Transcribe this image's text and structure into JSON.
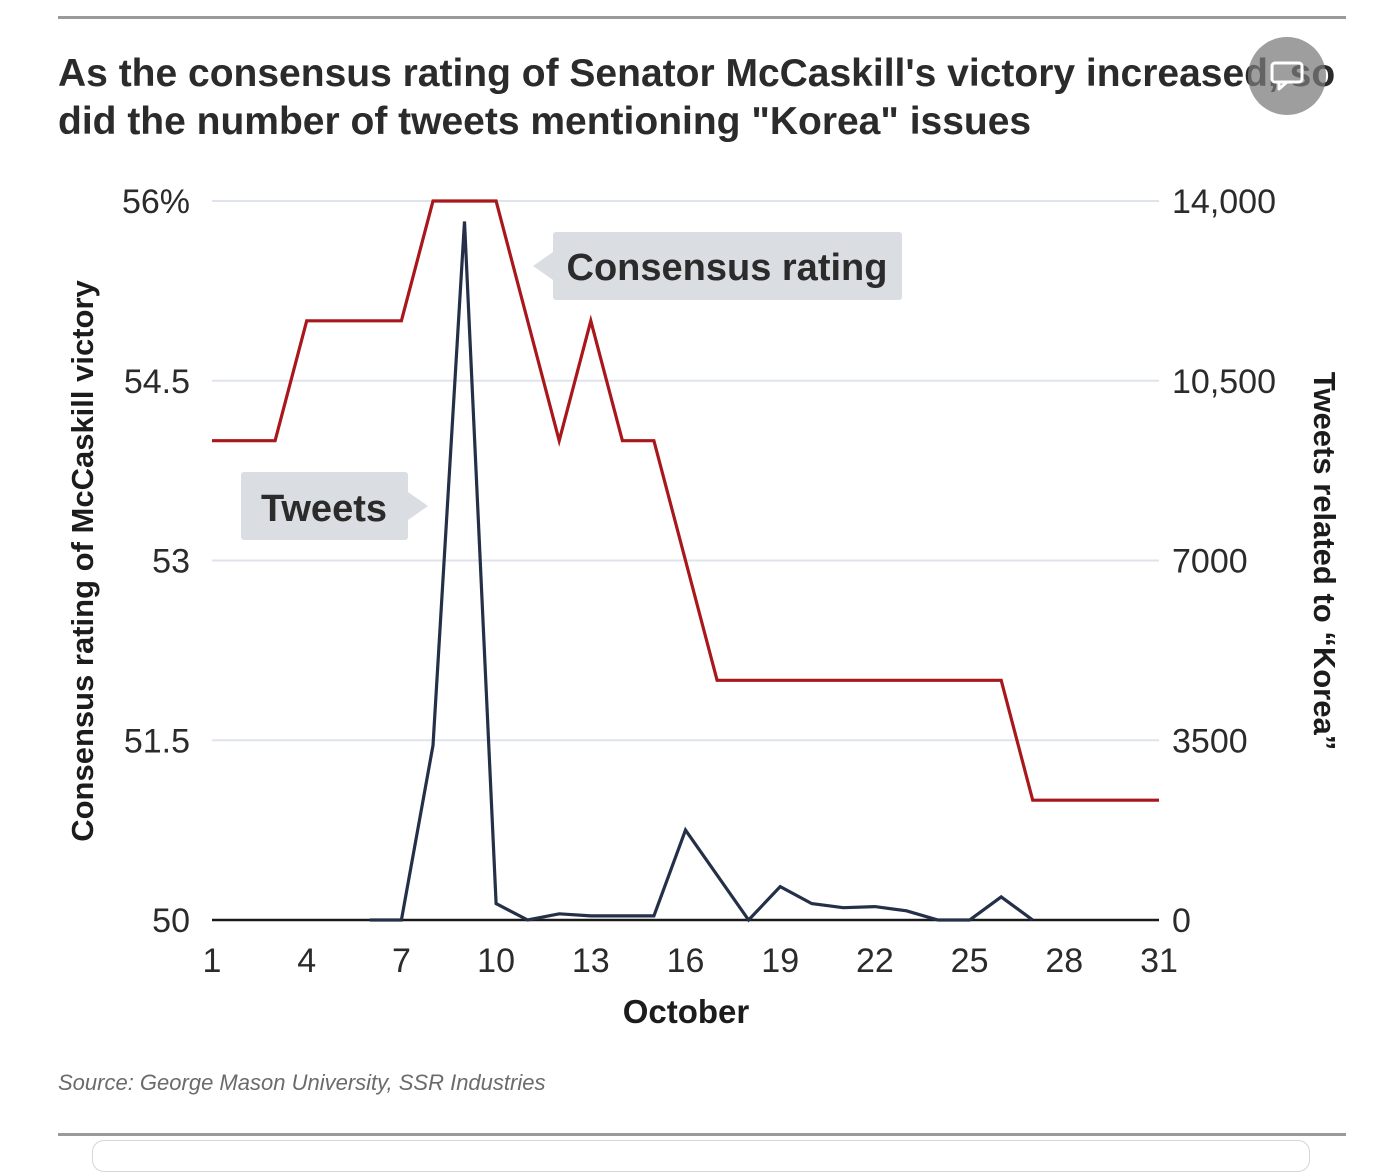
{
  "page": {
    "title": "As the consensus rating of Senator McCaskill's victory increased, so did the number of tweets mentioning \"Korea\" issues",
    "source": "Source: George Mason University, SSR Industries",
    "comment_icon": "speech-bubble-icon"
  },
  "chart_data": {
    "type": "line",
    "xlabel": "October",
    "x_ticks": [
      1,
      4,
      7,
      10,
      13,
      16,
      19,
      22,
      25,
      28,
      31
    ],
    "xlim": [
      1,
      31
    ],
    "ylabel_left": "Consensus rating of McCaskill victory",
    "ylabel_right": "Tweets related to “Korea”",
    "y_left": {
      "min": 50,
      "max": 56,
      "ticks": [
        50,
        51.5,
        53,
        54.5,
        56
      ],
      "tick_labels": [
        "50",
        "51.5",
        "53",
        "54.5",
        "56%"
      ]
    },
    "y_right": {
      "min": 0,
      "max": 14000,
      "ticks": [
        0,
        3500,
        7000,
        10500,
        14000
      ],
      "tick_labels": [
        "0",
        "3500",
        "7000",
        "10,500",
        "14,000"
      ]
    },
    "grid": true,
    "series": [
      {
        "name": "Consensus rating",
        "axis": "left",
        "color": "#a8171b",
        "points": [
          [
            1,
            54
          ],
          [
            3,
            54
          ],
          [
            4,
            55
          ],
          [
            7,
            55
          ],
          [
            8,
            56
          ],
          [
            10,
            56
          ],
          [
            12,
            54
          ],
          [
            13,
            55
          ],
          [
            14,
            54
          ],
          [
            15,
            54
          ],
          [
            17,
            52
          ],
          [
            26,
            52
          ],
          [
            27,
            51
          ],
          [
            31,
            51
          ]
        ]
      },
      {
        "name": "Tweets",
        "axis": "right",
        "color": "#233048",
        "points": [
          [
            6,
            0
          ],
          [
            7,
            0
          ],
          [
            8,
            3400
          ],
          [
            9,
            13600
          ],
          [
            10,
            320
          ],
          [
            11,
            0
          ],
          [
            12,
            120
          ],
          [
            13,
            80
          ],
          [
            14,
            80
          ],
          [
            15,
            80
          ],
          [
            16,
            1750
          ],
          [
            18,
            0
          ],
          [
            19,
            650
          ],
          [
            20,
            320
          ],
          [
            21,
            240
          ],
          [
            22,
            260
          ],
          [
            23,
            180
          ],
          [
            24,
            0
          ],
          [
            25,
            0
          ],
          [
            26,
            450
          ],
          [
            27,
            0
          ]
        ]
      }
    ],
    "annotations": [
      {
        "label": "Consensus rating",
        "series": "Consensus rating"
      },
      {
        "label": "Tweets",
        "series": "Tweets"
      }
    ]
  }
}
